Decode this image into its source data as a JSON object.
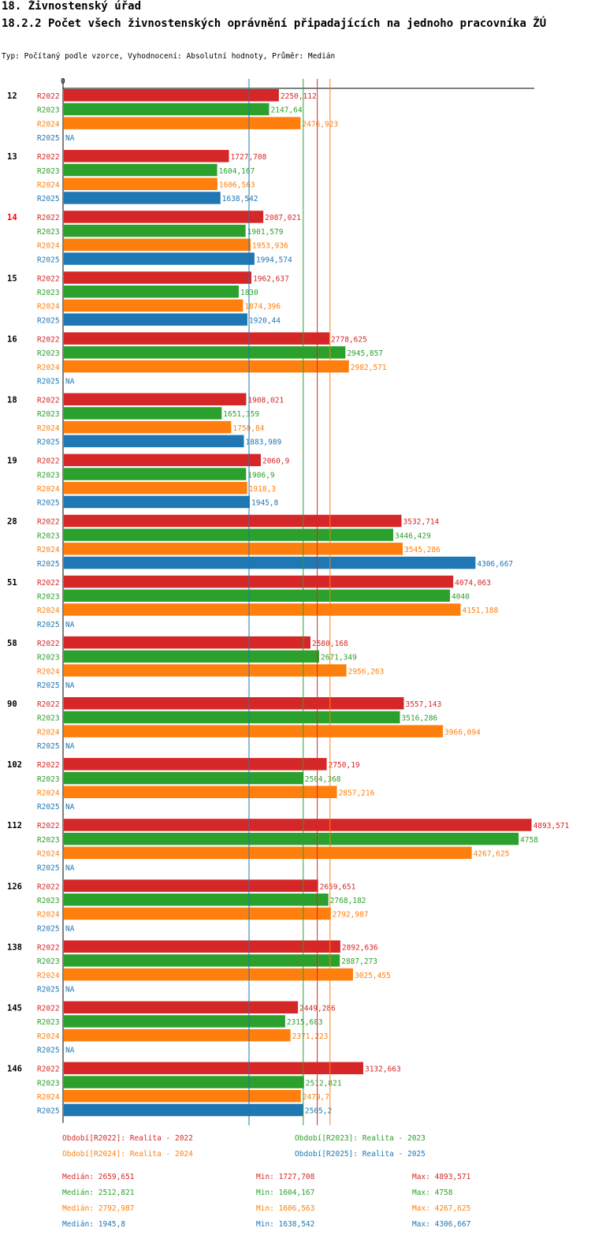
{
  "header": {
    "title": "18. Živnostenský úřad",
    "subtitle": "18.2.2 Počet všech živnostenských oprávnění připadajících na jednoho pracovníka ŽÚ",
    "info": "Typ: Počítaný podle vzorce, Vyhodnocení: Absolutní hodnoty, Průměr: Medián"
  },
  "colors": {
    "R2022": "#d62728",
    "R2023": "#2ca02c",
    "R2024": "#ff7f0e",
    "R2025": "#1f77b4",
    "highlight": "#ff0000"
  },
  "chart_data": {
    "type": "bar",
    "orientation": "horizontal",
    "axis_zero_label": "0",
    "xlim": [
      0,
      4893.571
    ],
    "highlighted_category": "14",
    "na_label": "NA",
    "categories": [
      "12",
      "13",
      "14",
      "15",
      "16",
      "18",
      "19",
      "28",
      "51",
      "58",
      "90",
      "102",
      "112",
      "126",
      "138",
      "145",
      "146"
    ],
    "series": [
      {
        "name": "R2022",
        "legend": "Období[R2022]: Realita - 2022",
        "values": [
          2250.112,
          1727.708,
          2087.021,
          1962.637,
          2778.625,
          1908.021,
          2060.9,
          3532.714,
          4074.063,
          2580.168,
          3557.143,
          2750.19,
          4893.571,
          2659.651,
          2892.636,
          2449.286,
          3132.663
        ],
        "labels": [
          "2250,112",
          "1727,708",
          "2087,021",
          "1962,637",
          "2778,625",
          "1908,021",
          "2060,9",
          "3532,714",
          "4074,063",
          "2580,168",
          "3557,143",
          "2750,19",
          "4893,571",
          "2659,651",
          "2892,636",
          "2449,286",
          "3132,663"
        ],
        "median": 2659.651,
        "median_label": "Medián: 2659,651",
        "min_label": "Min: 1727,708",
        "max_label": "Max: 4893,571"
      },
      {
        "name": "R2023",
        "legend": "Období[R2023]: Realita - 2023",
        "values": [
          2147.64,
          1604.167,
          1901.579,
          1830,
          2945.857,
          1651.359,
          1906.9,
          3446.429,
          4040,
          2671.349,
          3516.286,
          2504.368,
          4758,
          2768.182,
          2887.273,
          2315.683,
          2512.821
        ],
        "labels": [
          "2147,64",
          "1604,167",
          "1901,579",
          "1830",
          "2945,857",
          "1651,359",
          "1906,9",
          "3446,429",
          "4040",
          "2671,349",
          "3516,286",
          "2504,368",
          "4758",
          "2768,182",
          "2887,273",
          "2315,683",
          "2512,821"
        ],
        "median": 2512.821,
        "median_label": "Medián: 2512,821",
        "min_label": "Min: 1604,167",
        "max_label": "Max: 4758"
      },
      {
        "name": "R2024",
        "legend": "Období[R2024]: Realita - 2024",
        "values": [
          2476.923,
          1606.563,
          1953.936,
          1874.396,
          2982.571,
          1750.84,
          1918.3,
          3545.286,
          4151.188,
          2956.263,
          3966.094,
          2857.216,
          4267.625,
          2792.987,
          3025.455,
          2371.223,
          2479.7
        ],
        "labels": [
          "2476,923",
          "1606,563",
          "1953,936",
          "1874,396",
          "2982,571",
          "1750,84",
          "1918,3",
          "3545,286",
          "4151,188",
          "2956,263",
          "3966,094",
          "2857,216",
          "4267,625",
          "2792,987",
          "3025,455",
          "2371,223",
          "2479,7"
        ],
        "median": 2792.987,
        "median_label": "Medián: 2792,987",
        "min_label": "Min: 1606,563",
        "max_label": "Max: 4267,625"
      },
      {
        "name": "R2025",
        "legend": "Období[R2025]: Realita - 2025",
        "values": [
          null,
          1638.542,
          1994.574,
          1920.44,
          null,
          1883.989,
          1945.8,
          4306.667,
          null,
          null,
          null,
          null,
          null,
          null,
          null,
          null,
          2505.2
        ],
        "labels": [
          "NA",
          "1638,542",
          "1994,574",
          "1920,44",
          "NA",
          "1883,989",
          "1945,8",
          "4306,667",
          "NA",
          "NA",
          "NA",
          "NA",
          "NA",
          "NA",
          "NA",
          "NA",
          "2505,2"
        ],
        "median": 1945.8,
        "median_label": "Medián: 1945,8",
        "min_label": "Min: 1638,542",
        "max_label": "Max: 4306,667"
      }
    ]
  }
}
